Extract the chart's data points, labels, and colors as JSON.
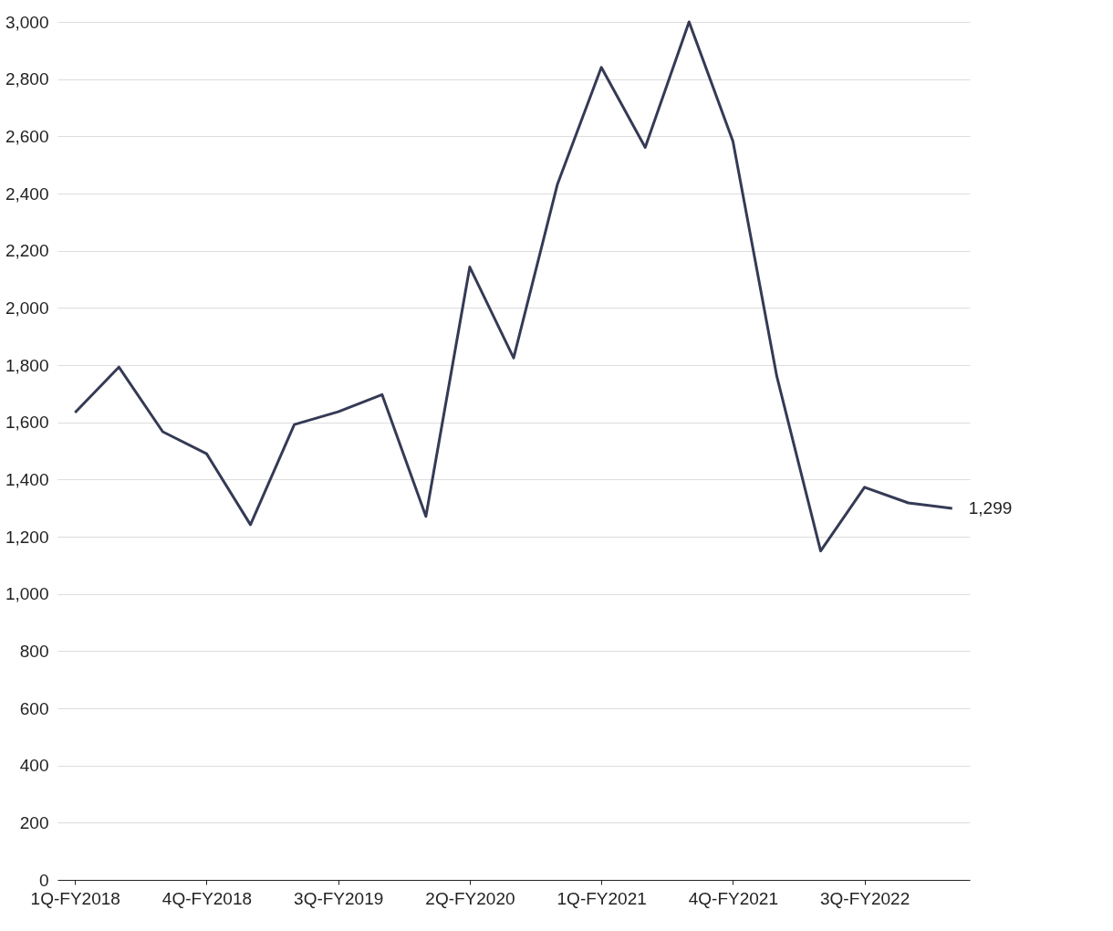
{
  "chart_data": {
    "type": "line",
    "categories": [
      "1Q-FY2018",
      null,
      null,
      "4Q-FY2018",
      null,
      null,
      "3Q-FY2019",
      null,
      null,
      "2Q-FY2020",
      null,
      null,
      "1Q-FY2021",
      null,
      null,
      "4Q-FY2021",
      null,
      null,
      "3Q-FY2022",
      null,
      null
    ],
    "series": [
      {
        "color": "#353a55",
        "values": [
          1634,
          1793,
          1567,
          1490,
          1242,
          1592,
          1637,
          1697,
          1271,
          2143,
          1825,
          2433,
          2841,
          2561,
          3000,
          2583,
          1761,
          1150,
          1373,
          1318,
          1299
        ]
      }
    ],
    "ylim": [
      0,
      3000
    ],
    "yticks": [
      0,
      {
        "value": 200,
        "label": "200"
      },
      {
        "value": 400,
        "label": "400"
      },
      {
        "value": 600,
        "label": "600"
      },
      {
        "value": 800,
        "label": "800"
      },
      {
        "value": 1000,
        "label": "1,000"
      },
      {
        "value": 1200,
        "label": "1,200"
      },
      {
        "value": 1400,
        "label": "1,400"
      },
      {
        "value": 1600,
        "label": "1,600"
      },
      {
        "value": 1800,
        "label": "1,800"
      },
      {
        "value": 2000,
        "label": "2,000"
      },
      {
        "value": 2200,
        "label": "2,200"
      },
      {
        "value": 2400,
        "label": "2,400"
      },
      {
        "value": 2600,
        "label": "2,600"
      },
      {
        "value": 2800,
        "label": "2,800"
      },
      {
        "value": 3000,
        "label": "3,000"
      }
    ],
    "grid": "y",
    "marker": "none",
    "line_style": "solid",
    "annotations": [
      "1,299"
    ]
  }
}
